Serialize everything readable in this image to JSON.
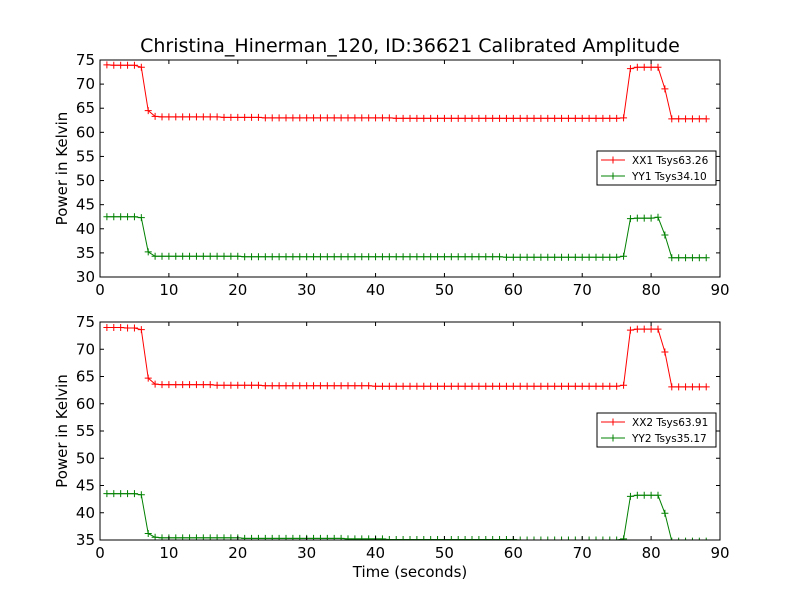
{
  "figure": {
    "title": "Christina_Hinerman_120, ID:36621 Calibrated Amplitude",
    "xlabel": "Time (seconds)"
  },
  "chart_data": [
    {
      "type": "line",
      "title": "Christina_Hinerman_120, ID:36621 Calibrated Amplitude",
      "xlabel": "",
      "ylabel": "Power in Kelvin",
      "xlim": [
        0,
        90
      ],
      "ylim": [
        30,
        75
      ],
      "xticks": [
        0,
        10,
        20,
        30,
        40,
        50,
        60,
        70,
        80,
        90
      ],
      "yticks": [
        30,
        35,
        40,
        45,
        50,
        55,
        60,
        65,
        70,
        75
      ],
      "grid": false,
      "legend_position": "center-right",
      "x": [
        1,
        2,
        3,
        4,
        5,
        6,
        7,
        8,
        9,
        10,
        11,
        12,
        13,
        14,
        15,
        16,
        17,
        18,
        19,
        20,
        21,
        22,
        23,
        24,
        25,
        26,
        27,
        28,
        29,
        30,
        31,
        32,
        33,
        34,
        35,
        36,
        37,
        38,
        39,
        40,
        41,
        42,
        43,
        44,
        45,
        46,
        47,
        48,
        49,
        50,
        51,
        52,
        53,
        54,
        55,
        56,
        57,
        58,
        59,
        60,
        61,
        62,
        63,
        64,
        65,
        66,
        67,
        68,
        69,
        70,
        71,
        72,
        73,
        74,
        75,
        76,
        77,
        78,
        79,
        80,
        81,
        82,
        83,
        84,
        85,
        86,
        87,
        88
      ],
      "series": [
        {
          "name": "XX1 Tsys63.26",
          "color": "#ff0000",
          "values": [
            74.0,
            73.9,
            73.9,
            73.9,
            73.9,
            73.5,
            64.5,
            63.3,
            63.2,
            63.2,
            63.2,
            63.2,
            63.2,
            63.2,
            63.2,
            63.2,
            63.2,
            63.1,
            63.1,
            63.1,
            63.1,
            63.1,
            63.1,
            63.0,
            63.0,
            63.0,
            63.0,
            63.0,
            63.0,
            63.0,
            63.0,
            63.0,
            63.0,
            63.0,
            63.0,
            63.0,
            63.0,
            63.0,
            63.0,
            63.0,
            63.0,
            63.0,
            62.9,
            62.9,
            62.9,
            62.9,
            62.9,
            62.9,
            62.9,
            62.9,
            62.9,
            62.9,
            62.9,
            62.9,
            62.9,
            62.9,
            62.9,
            62.9,
            62.9,
            62.9,
            62.9,
            62.9,
            62.9,
            62.9,
            62.9,
            62.9,
            62.9,
            62.9,
            62.9,
            62.9,
            62.9,
            62.9,
            62.9,
            62.9,
            62.9,
            63.0,
            73.2,
            73.5,
            73.5,
            73.5,
            73.5,
            69.0,
            62.8,
            62.8,
            62.8,
            62.8,
            62.8,
            62.8
          ]
        },
        {
          "name": "YY1 Tsys34.10",
          "color": "#008000",
          "values": [
            42.5,
            42.5,
            42.5,
            42.5,
            42.5,
            42.3,
            35.2,
            34.3,
            34.3,
            34.3,
            34.3,
            34.3,
            34.3,
            34.3,
            34.3,
            34.3,
            34.3,
            34.3,
            34.3,
            34.3,
            34.2,
            34.2,
            34.2,
            34.2,
            34.2,
            34.2,
            34.2,
            34.2,
            34.2,
            34.2,
            34.2,
            34.2,
            34.2,
            34.2,
            34.2,
            34.2,
            34.2,
            34.2,
            34.2,
            34.2,
            34.2,
            34.2,
            34.2,
            34.2,
            34.2,
            34.2,
            34.2,
            34.2,
            34.2,
            34.2,
            34.2,
            34.2,
            34.2,
            34.2,
            34.2,
            34.2,
            34.2,
            34.2,
            34.1,
            34.1,
            34.1,
            34.1,
            34.1,
            34.1,
            34.1,
            34.1,
            34.1,
            34.1,
            34.1,
            34.1,
            34.1,
            34.1,
            34.1,
            34.1,
            34.1,
            34.3,
            42.1,
            42.2,
            42.2,
            42.2,
            42.4,
            38.7,
            34.0,
            34.0,
            34.0,
            34.0,
            34.0,
            34.0
          ]
        }
      ]
    },
    {
      "type": "line",
      "title": "",
      "xlabel": "Time (seconds)",
      "ylabel": "Power in Kelvin",
      "xlim": [
        0,
        90
      ],
      "ylim": [
        35,
        75
      ],
      "xticks": [
        0,
        10,
        20,
        30,
        40,
        50,
        60,
        70,
        80,
        90
      ],
      "yticks": [
        35,
        40,
        45,
        50,
        55,
        60,
        65,
        70,
        75
      ],
      "grid": false,
      "legend_position": "center-right",
      "x": [
        1,
        2,
        3,
        4,
        5,
        6,
        7,
        8,
        9,
        10,
        11,
        12,
        13,
        14,
        15,
        16,
        17,
        18,
        19,
        20,
        21,
        22,
        23,
        24,
        25,
        26,
        27,
        28,
        29,
        30,
        31,
        32,
        33,
        34,
        35,
        36,
        37,
        38,
        39,
        40,
        41,
        42,
        43,
        44,
        45,
        46,
        47,
        48,
        49,
        50,
        51,
        52,
        53,
        54,
        55,
        56,
        57,
        58,
        59,
        60,
        61,
        62,
        63,
        64,
        65,
        66,
        67,
        68,
        69,
        70,
        71,
        72,
        73,
        74,
        75,
        76,
        77,
        78,
        79,
        80,
        81,
        82,
        83,
        84,
        85,
        86,
        87,
        88
      ],
      "series": [
        {
          "name": "XX2 Tsys63.91",
          "color": "#ff0000",
          "values": [
            74.0,
            74.0,
            74.0,
            73.9,
            73.9,
            73.6,
            64.7,
            63.6,
            63.5,
            63.5,
            63.5,
            63.5,
            63.5,
            63.5,
            63.5,
            63.5,
            63.4,
            63.4,
            63.4,
            63.4,
            63.4,
            63.4,
            63.4,
            63.3,
            63.3,
            63.3,
            63.3,
            63.3,
            63.3,
            63.3,
            63.3,
            63.3,
            63.3,
            63.3,
            63.3,
            63.3,
            63.3,
            63.3,
            63.3,
            63.2,
            63.2,
            63.2,
            63.2,
            63.2,
            63.2,
            63.2,
            63.2,
            63.2,
            63.2,
            63.2,
            63.2,
            63.2,
            63.2,
            63.2,
            63.2,
            63.2,
            63.2,
            63.2,
            63.2,
            63.2,
            63.2,
            63.2,
            63.2,
            63.2,
            63.2,
            63.2,
            63.2,
            63.2,
            63.2,
            63.2,
            63.2,
            63.2,
            63.2,
            63.2,
            63.2,
            63.4,
            73.5,
            73.7,
            73.7,
            73.7,
            73.7,
            69.5,
            63.1,
            63.1,
            63.1,
            63.1,
            63.1,
            63.1
          ]
        },
        {
          "name": "YY2 Tsys35.17",
          "color": "#008000",
          "values": [
            43.5,
            43.5,
            43.5,
            43.5,
            43.5,
            43.3,
            36.2,
            35.5,
            35.4,
            35.4,
            35.4,
            35.4,
            35.4,
            35.4,
            35.4,
            35.4,
            35.4,
            35.4,
            35.4,
            35.4,
            35.3,
            35.3,
            35.3,
            35.3,
            35.3,
            35.3,
            35.3,
            35.3,
            35.3,
            35.3,
            35.3,
            35.3,
            35.3,
            35.3,
            35.3,
            35.2,
            35.2,
            35.2,
            35.2,
            35.2,
            35.2,
            35.1,
            35.1,
            35.1,
            35.1,
            35.1,
            35.1,
            35.1,
            35.1,
            35.1,
            35.1,
            35.1,
            35.1,
            35.1,
            35.1,
            35.1,
            35.1,
            35.1,
            35.1,
            35.1,
            35.0,
            35.0,
            35.0,
            35.0,
            35.0,
            35.0,
            35.0,
            35.0,
            35.0,
            35.0,
            35.0,
            35.0,
            35.0,
            35.0,
            35.0,
            35.2,
            43.0,
            43.2,
            43.2,
            43.2,
            43.2,
            39.9,
            34.8,
            34.8,
            34.8,
            34.8,
            34.8,
            34.8
          ]
        }
      ]
    }
  ]
}
